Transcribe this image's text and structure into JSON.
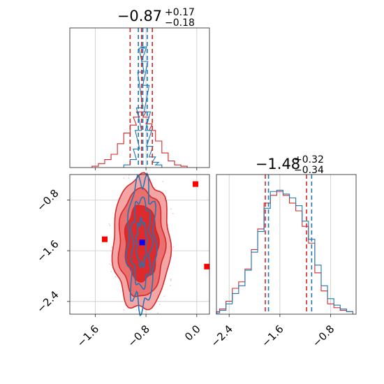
{
  "colors": {
    "red": "#d62728",
    "red_fill_outer": "#f4a6a6",
    "red_fill_mid": "#ea6f6f",
    "red_fill_inner": "#de2a2a",
    "blue": "#1f77b4",
    "marker_red": "#ff0000",
    "marker_blue": "#0000ff",
    "grid": "#c8c8c8"
  },
  "chart_data": [
    {
      "type": "histogram",
      "panel": "top-left",
      "title": "−0.87",
      "title_sup": "+0.17",
      "title_sub": "−0.18",
      "xlim": [
        -2.0,
        0.2
      ],
      "x_gridlines": [
        -1.6,
        -0.8,
        0.0
      ],
      "red_quantile_lines": [
        -1.05,
        -0.87,
        -0.7
      ],
      "blue_quantile_lines": [
        -0.92,
        -0.85,
        -0.78
      ],
      "series": [
        {
          "color": "red",
          "x": [
            -1.6,
            -1.5,
            -1.4,
            -1.3,
            -1.2,
            -1.1,
            -1.0,
            -0.95,
            -0.9,
            -0.85,
            -0.8,
            -0.75,
            -0.7,
            -0.6,
            -0.5,
            -0.4,
            -0.3,
            -0.2
          ],
          "values": [
            0.01,
            0.03,
            0.06,
            0.1,
            0.18,
            0.26,
            0.32,
            0.38,
            0.42,
            0.42,
            0.38,
            0.33,
            0.28,
            0.2,
            0.11,
            0.05,
            0.02,
            0.01
          ]
        },
        {
          "color": "blue",
          "x": [
            -1.1,
            -1.0,
            -0.95,
            -0.92,
            -0.9,
            -0.88,
            -0.86,
            -0.84,
            -0.82,
            -0.8,
            -0.78,
            -0.76,
            -0.74,
            -0.7,
            -0.65,
            -0.6
          ],
          "values": [
            0.02,
            0.06,
            0.14,
            0.28,
            0.45,
            0.72,
            0.9,
            0.91,
            0.8,
            0.62,
            0.42,
            0.28,
            0.16,
            0.08,
            0.04,
            0.02
          ]
        }
      ]
    },
    {
      "type": "contour",
      "panel": "bottom-left",
      "xlim": [
        -2.0,
        0.2
      ],
      "ylim": [
        -2.6,
        -0.4
      ],
      "x_ticks": [
        "−1.6",
        "−0.8",
        "0.0"
      ],
      "x_tick_values": [
        -1.6,
        -0.8,
        0.0
      ],
      "y_ticks": [
        "−0.8",
        "−1.6",
        "−2.4"
      ],
      "y_tick_values": [
        -0.8,
        -1.6,
        -2.4
      ],
      "center": {
        "x": -0.87,
        "y": -1.48
      },
      "red_levels": [
        {
          "rx": 0.45,
          "ry": 1.05
        },
        {
          "rx": 0.36,
          "ry": 0.85
        },
        {
          "rx": 0.26,
          "ry": 0.6
        }
      ],
      "blue_levels": [
        {
          "rx": 0.22,
          "ry": 1.0
        },
        {
          "rx": 0.15,
          "ry": 0.7
        },
        {
          "rx": 0.08,
          "ry": 0.35
        }
      ],
      "markers_red": [
        {
          "x": -0.02,
          "y": -0.55
        },
        {
          "x": -1.45,
          "y": -1.42
        },
        {
          "x": 0.16,
          "y": -1.85
        }
      ],
      "marker_blue": {
        "x": -0.86,
        "y": -1.47
      }
    },
    {
      "type": "histogram",
      "panel": "bottom-right",
      "title": "−1.48",
      "title_sup": "+0.32",
      "title_sub": "−0.34",
      "xlim": [
        -2.6,
        -0.4
      ],
      "x_ticks": [
        "−2.4",
        "−1.6",
        "−0.8"
      ],
      "x_tick_values": [
        -2.4,
        -1.6,
        -0.8
      ],
      "red_quantile_lines": [
        -1.83,
        -1.18
      ],
      "blue_quantile_lines": [
        -1.78,
        -1.1
      ],
      "series": [
        {
          "color": "red",
          "x": [
            -2.6,
            -2.5,
            -2.4,
            -2.3,
            -2.2,
            -2.1,
            -2.0,
            -1.9,
            -1.8,
            -1.7,
            -1.6,
            -1.5,
            -1.4,
            -1.3,
            -1.2,
            -1.1,
            -1.0,
            -0.9,
            -0.8,
            -0.7,
            -0.6,
            -0.5
          ],
          "values": [
            0.02,
            0.04,
            0.1,
            0.2,
            0.25,
            0.35,
            0.5,
            0.66,
            0.86,
            0.92,
            0.95,
            0.92,
            0.86,
            0.8,
            0.68,
            0.55,
            0.32,
            0.18,
            0.08,
            0.05,
            0.03,
            0.02
          ]
        },
        {
          "color": "blue",
          "x": [
            -2.6,
            -2.5,
            -2.4,
            -2.3,
            -2.2,
            -2.1,
            -2.0,
            -1.9,
            -1.8,
            -1.7,
            -1.6,
            -1.5,
            -1.4,
            -1.3,
            -1.2,
            -1.1,
            -1.0,
            -0.9,
            -0.8,
            -0.7,
            -0.6,
            -0.5
          ],
          "values": [
            0.01,
            0.03,
            0.08,
            0.16,
            0.22,
            0.34,
            0.48,
            0.64,
            0.82,
            0.95,
            0.96,
            0.93,
            0.9,
            0.84,
            0.72,
            0.58,
            0.38,
            0.22,
            0.12,
            0.07,
            0.04,
            0.02
          ]
        }
      ]
    }
  ]
}
